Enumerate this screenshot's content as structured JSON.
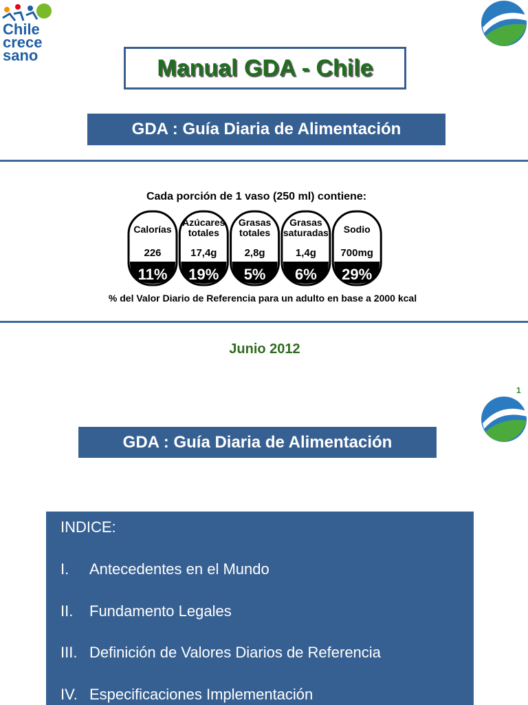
{
  "slide1": {
    "logo": {
      "lines": [
        "Chile",
        "crece",
        "sano"
      ]
    },
    "title": "Manual GDA - Chile",
    "subtitle": "GDA : Guía Diaria de Alimentación",
    "label": {
      "header": "Cada porción de 1 vaso (250 ml) contiene:",
      "nutrients": [
        {
          "name": [
            "Calorías"
          ],
          "amount": "226",
          "percent": "11%"
        },
        {
          "name": [
            "Azúcares",
            "totales"
          ],
          "amount": "17,4g",
          "percent": "19%"
        },
        {
          "name": [
            "Grasas",
            "totales"
          ],
          "amount": "2,8g",
          "percent": "5%"
        },
        {
          "name": [
            "Grasas",
            "saturadas"
          ],
          "amount": "1,4g",
          "percent": "6%"
        },
        {
          "name": [
            "Sodio"
          ],
          "amount": "700mg",
          "percent": "29%"
        }
      ],
      "footnote": "% del Valor Diario de Referencia para un adulto en base a 2000 kcal"
    },
    "date": "Junio 2012",
    "page_number": "1"
  },
  "slide2": {
    "subtitle": "GDA : Guía Diaria de Alimentación",
    "index": {
      "title": "INDICE:",
      "items": [
        {
          "numeral": "I.",
          "text": "Antecedentes en el Mundo"
        },
        {
          "numeral": "II.",
          "text": "Fundamento Legales"
        },
        {
          "numeral": "III.",
          "text": "Definición de Valores Diarios de Referencia"
        },
        {
          "numeral": "IV.",
          "text": "Especificaciones Implementación"
        }
      ]
    }
  }
}
